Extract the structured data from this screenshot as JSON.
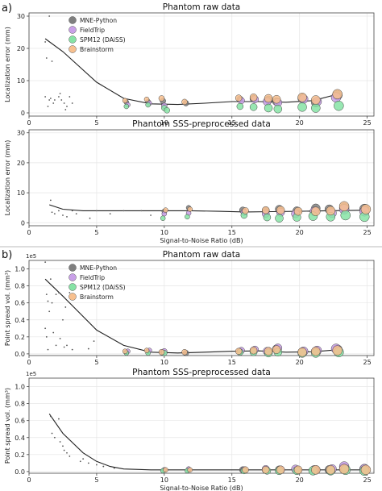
{
  "panel_labels": [
    "a)",
    "b)"
  ],
  "legend_entries": [
    {
      "name": "MNE-Python",
      "color": "#7f7f7f"
    },
    {
      "name": "FieldTrip",
      "color": "#c9a0e8"
    },
    {
      "name": "SPM12 (DAiSS)",
      "color": "#86e3a5"
    },
    {
      "name": "Brainstorm",
      "color": "#f7c08f"
    }
  ],
  "chart_data": [
    {
      "type": "scatter",
      "panel": "a",
      "title": "Phantom raw data",
      "xlabel": "",
      "ylabel": "Localization error (mm)",
      "xlim": [
        0,
        25.5
      ],
      "ylim": [
        -1,
        31
      ],
      "xticks": [
        0,
        5,
        10,
        15,
        20,
        25
      ],
      "yticks": [
        0,
        10,
        20,
        30
      ],
      "sci_label": "",
      "legend": "top-left",
      "grid": true,
      "fit": {
        "x": [
          1.2,
          2.5,
          5,
          7,
          9,
          11,
          13,
          15,
          17,
          19,
          21,
          23
        ],
        "y": [
          23,
          19,
          9.5,
          4.5,
          2.8,
          2.6,
          3,
          3.5,
          3.5,
          3.3,
          3.8,
          6
        ]
      },
      "series": [
        {
          "name": "MNE-Python",
          "x": [
            7.2,
            8.8,
            9.9,
            11.6,
            15.6,
            16.6,
            17.7,
            18.3,
            20.2,
            21.2,
            22.8
          ],
          "y": [
            3.3,
            3.5,
            3.7,
            3.0,
            4.2,
            4.4,
            4.0,
            3.5,
            4.5,
            3.2,
            5.5
          ],
          "size": [
            3,
            3,
            3.5,
            3.5,
            4,
            4.5,
            5,
            5,
            5.5,
            5.5,
            6
          ]
        },
        {
          "name": "FieldTrip",
          "x": [
            7.3,
            8.9,
            10.0,
            15.7,
            16.7,
            17.6,
            18.4,
            20.3,
            21.3,
            22.7
          ],
          "y": [
            2.5,
            3.0,
            2.2,
            3.8,
            4.2,
            3.5,
            3.2,
            4.3,
            3.5,
            4.8
          ],
          "size": [
            3,
            3,
            3.5,
            4,
            4.5,
            5,
            5,
            5.5,
            5.5,
            6
          ]
        },
        {
          "name": "SPM12 (DAiSS)",
          "x": [
            7.2,
            8.8,
            10.0,
            10.2,
            15.6,
            16.6,
            17.7,
            18.4,
            20.2,
            21.2,
            22.9
          ],
          "y": [
            2.0,
            2.5,
            1.5,
            0.8,
            2.0,
            1.8,
            1.5,
            1.2,
            1.8,
            1.5,
            2.2
          ],
          "size": [
            3,
            3,
            3.5,
            3.5,
            4,
            4.5,
            5,
            5,
            5.5,
            5.5,
            6
          ]
        },
        {
          "name": "Brainstorm",
          "x": [
            7.1,
            8.7,
            9.8,
            11.5,
            15.5,
            16.6,
            17.7,
            18.3,
            20.2,
            21.2,
            22.8
          ],
          "y": [
            3.8,
            4.2,
            4.5,
            3.4,
            4.6,
            4.8,
            4.5,
            4.2,
            4.8,
            4.0,
            5.8
          ],
          "size": [
            3,
            3,
            3.5,
            3.5,
            4,
            4.5,
            5,
            5,
            5.5,
            5.5,
            6
          ]
        },
        {
          "name": "",
          "x": [
            1.2,
            1.3,
            1.5,
            1.7,
            1.2,
            1.5,
            1.6,
            1.8,
            2.2,
            2.4,
            2.6,
            3.0,
            2.3,
            2.8,
            3.2,
            1.9,
            2.7,
            1.4
          ],
          "y": [
            22,
            17,
            30,
            16,
            5,
            4,
            4.5,
            3,
            5,
            4,
            3,
            5,
            6,
            2,
            3,
            4,
            1,
            2
          ],
          "size": [
            1,
            1,
            1,
            1,
            1,
            1,
            1,
            1,
            1,
            1,
            1,
            1,
            1,
            1,
            1,
            1,
            1,
            1
          ]
        }
      ]
    },
    {
      "type": "scatter",
      "panel": "a",
      "title": "Phantom SSS-preprocessed data",
      "xlabel": "Signal-to-Noise Ratio (dB)",
      "ylabel": "Localization error (mm)",
      "xlim": [
        0,
        25.5
      ],
      "ylim": [
        -1,
        31
      ],
      "xticks": [
        0,
        5,
        10,
        15,
        20,
        25
      ],
      "yticks": [
        0,
        10,
        20,
        30
      ],
      "sci_label": "",
      "legend": "none",
      "grid": true,
      "fit": {
        "x": [
          1.5,
          2.5,
          4,
          6,
          8,
          10,
          12,
          14,
          16,
          18,
          20,
          22,
          25
        ],
        "y": [
          6,
          4.5,
          4,
          4,
          4,
          4,
          4,
          3.8,
          3.6,
          3.7,
          3.8,
          4,
          4.2
        ]
      },
      "series": [
        {
          "name": "MNE-Python",
          "x": [
            10.0,
            11.8,
            15.8,
            17.5,
            18.5,
            19.8,
            21.2,
            22.2,
            23.3,
            24.8
          ],
          "y": [
            3.8,
            5.0,
            4.2,
            4.0,
            4.5,
            4.0,
            4.8,
            4.5,
            5.0,
            4.6
          ],
          "size": [
            3,
            3,
            4,
            4.5,
            5,
            5,
            5.5,
            5.5,
            6,
            6
          ]
        },
        {
          "name": "FieldTrip",
          "x": [
            10.0,
            11.8,
            15.9,
            17.5,
            18.6,
            19.7,
            21.1,
            22.4,
            23.3,
            24.8
          ],
          "y": [
            3.0,
            3.2,
            3.5,
            3.0,
            3.5,
            3.0,
            3.8,
            3.2,
            4.5,
            3.8
          ],
          "size": [
            3,
            3,
            4,
            4.5,
            5,
            5,
            5.5,
            5.5,
            6,
            6
          ]
        },
        {
          "name": "SPM12 (DAiSS)",
          "x": [
            9.9,
            11.7,
            15.9,
            17.6,
            18.5,
            19.8,
            21.0,
            22.3,
            23.4,
            24.8
          ],
          "y": [
            1.5,
            2.0,
            2.5,
            1.8,
            1.5,
            1.8,
            2.2,
            2.0,
            2.5,
            2.0
          ],
          "size": [
            3,
            3,
            4,
            4.5,
            5,
            5,
            5.5,
            5.5,
            6,
            6
          ]
        },
        {
          "name": "Brainstorm",
          "x": [
            10.1,
            11.9,
            16.0,
            17.5,
            18.6,
            19.9,
            21.2,
            22.3,
            23.3,
            24.9
          ],
          "y": [
            4.2,
            4.5,
            4.0,
            4.2,
            4.2,
            3.8,
            3.8,
            4.0,
            5.5,
            4.5
          ],
          "size": [
            3,
            3,
            4,
            4.5,
            5,
            5,
            5.5,
            5.5,
            6,
            6
          ]
        },
        {
          "name": "",
          "x": [
            1.6,
            1.7,
            1.9,
            2.2,
            2.5,
            2.8,
            3.2,
            3.5,
            4.5,
            5.0,
            6.0,
            7.0,
            8.3,
            9.0
          ],
          "y": [
            7.5,
            3.5,
            3,
            4,
            2.5,
            2,
            4,
            3,
            1.5,
            4,
            3,
            4,
            4,
            2.5
          ],
          "size": [
            1,
            1,
            1,
            1,
            1,
            1,
            1,
            1,
            1,
            1,
            1,
            1,
            1,
            1
          ]
        }
      ]
    },
    {
      "type": "scatter",
      "panel": "b",
      "title": "Phantom raw data",
      "xlabel": "",
      "ylabel": "Point spread vol. (mm³)",
      "xlim": [
        0,
        25.5
      ],
      "ylim": [
        -0.02,
        1.1
      ],
      "xticks": [
        0,
        5,
        10,
        15,
        20,
        25
      ],
      "yticks": [
        0.0,
        0.2,
        0.4,
        0.6,
        0.8,
        1.0
      ],
      "sci_label": "1e5",
      "legend": "top-left",
      "grid": true,
      "fit": {
        "x": [
          1.2,
          2.5,
          5,
          7,
          9,
          11,
          13,
          15,
          17,
          19,
          21,
          23
        ],
        "y": [
          0.88,
          0.68,
          0.28,
          0.1,
          0.02,
          0.01,
          0.02,
          0.03,
          0.035,
          0.02,
          0.025,
          0.05
        ]
      },
      "series": [
        {
          "name": "MNE-Python",
          "x": [
            7.2,
            8.8,
            9.9,
            11.6,
            15.6,
            16.6,
            17.7,
            18.3,
            20.2,
            21.2,
            22.8
          ],
          "y": [
            0.02,
            0.03,
            0.02,
            0.01,
            0.03,
            0.04,
            0.03,
            0.06,
            0.02,
            0.03,
            0.05
          ],
          "size": [
            3,
            3,
            3.5,
            3.5,
            4,
            4.5,
            5,
            5,
            5.5,
            5.5,
            6
          ]
        },
        {
          "name": "FieldTrip",
          "x": [
            7.3,
            8.9,
            10.0,
            15.7,
            16.7,
            17.6,
            18.4,
            20.3,
            21.3,
            22.7
          ],
          "y": [
            0.03,
            0.04,
            0.03,
            0.04,
            0.05,
            0.03,
            0.07,
            0.03,
            0.04,
            0.06
          ],
          "size": [
            3,
            3,
            3.5,
            4,
            4.5,
            5,
            5,
            5.5,
            5.5,
            6
          ]
        },
        {
          "name": "SPM12 (DAiSS)",
          "x": [
            7.2,
            8.8,
            10.0,
            15.6,
            16.6,
            17.7,
            18.4,
            20.2,
            21.2,
            22.9
          ],
          "y": [
            0.01,
            0.01,
            0.01,
            0.02,
            0.02,
            0.01,
            0.02,
            0.01,
            0.01,
            0.02
          ],
          "size": [
            3,
            3,
            3.5,
            4,
            4.5,
            5,
            5,
            5.5,
            5.5,
            6
          ]
        },
        {
          "name": "Brainstorm",
          "x": [
            7.1,
            8.7,
            9.8,
            11.5,
            15.5,
            16.6,
            17.7,
            18.3,
            20.2,
            21.2,
            22.8
          ],
          "y": [
            0.03,
            0.04,
            0.02,
            0.02,
            0.03,
            0.04,
            0.03,
            0.05,
            0.02,
            0.03,
            0.04
          ],
          "size": [
            3,
            3,
            3.5,
            3.5,
            4,
            4.5,
            5,
            5,
            5.5,
            5.5,
            6
          ]
        },
        {
          "name": "",
          "x": [
            1.2,
            1.3,
            1.4,
            1.5,
            1.6,
            1.2,
            1.3,
            1.7,
            2.0,
            2.2,
            2.5,
            2.7,
            3.0,
            1.8,
            2.3,
            2.8,
            3.2,
            1.4,
            2.0,
            2.6,
            4.4,
            4.8
          ],
          "y": [
            1.08,
            0.7,
            0.62,
            0.5,
            0.88,
            0.3,
            0.2,
            0.6,
            0.7,
            0.72,
            0.4,
            0.55,
            0.72,
            0.25,
            0.18,
            0.1,
            0.05,
            0.05,
            0.1,
            0.08,
            0.06,
            0.15
          ],
          "size": [
            1,
            1,
            1,
            1,
            1,
            1,
            1,
            1,
            1,
            1,
            1,
            1,
            1,
            1,
            1,
            1,
            1,
            1,
            1,
            1,
            1,
            1
          ]
        }
      ]
    },
    {
      "type": "scatter",
      "panel": "b",
      "title": "Phantom SSS-preprocessed data",
      "xlabel": "Signal-to-Noise Ratio (dB)",
      "ylabel": "Point spread vol. (mm³)",
      "xlim": [
        0,
        25.5
      ],
      "ylim": [
        -0.02,
        1.1
      ],
      "xticks": [
        0,
        5,
        10,
        15,
        20,
        25
      ],
      "yticks": [
        0.0,
        0.2,
        0.4,
        0.6,
        0.8,
        1.0
      ],
      "sci_label": "1e5",
      "legend": "none",
      "grid": true,
      "fit": {
        "x": [
          1.5,
          2.5,
          4,
          5,
          6,
          7,
          9,
          11,
          13,
          15,
          17,
          19,
          21,
          23,
          25
        ],
        "y": [
          0.68,
          0.45,
          0.22,
          0.12,
          0.06,
          0.03,
          0.02,
          0.02,
          0.02,
          0.02,
          0.02,
          0.02,
          0.02,
          0.02,
          0.02
        ]
      },
      "series": [
        {
          "name": "MNE-Python",
          "x": [
            10.0,
            11.8,
            15.8,
            17.5,
            18.5,
            19.8,
            21.2,
            22.2,
            23.3,
            24.8
          ],
          "y": [
            0.02,
            0.02,
            0.02,
            0.02,
            0.02,
            0.02,
            0.02,
            0.02,
            0.04,
            0.03
          ],
          "size": [
            3,
            3,
            4,
            4.5,
            5,
            5,
            5.5,
            5.5,
            6,
            6
          ]
        },
        {
          "name": "FieldTrip",
          "x": [
            10.0,
            11.8,
            15.9,
            17.5,
            18.6,
            19.7,
            21.1,
            22.4,
            23.3,
            24.8
          ],
          "y": [
            0.02,
            0.03,
            0.02,
            0.03,
            0.02,
            0.03,
            0.02,
            0.03,
            0.06,
            0.03
          ],
          "size": [
            3,
            3,
            4,
            4.5,
            5,
            5,
            5.5,
            5.5,
            6,
            6
          ]
        },
        {
          "name": "SPM12 (DAiSS)",
          "x": [
            9.9,
            11.7,
            15.9,
            17.6,
            18.5,
            19.8,
            21.0,
            22.3,
            23.4,
            24.8
          ],
          "y": [
            0.01,
            0.01,
            0.01,
            0.01,
            0.01,
            0.01,
            0.01,
            0.01,
            0.02,
            0.01
          ],
          "size": [
            3,
            3,
            4,
            4.5,
            5,
            5,
            5.5,
            5.5,
            6,
            6
          ]
        },
        {
          "name": "Brainstorm",
          "x": [
            10.1,
            11.9,
            16.0,
            17.5,
            18.6,
            19.9,
            21.2,
            22.3,
            23.3,
            24.9
          ],
          "y": [
            0.02,
            0.02,
            0.02,
            0.02,
            0.02,
            0.02,
            0.02,
            0.02,
            0.03,
            0.02
          ],
          "size": [
            3,
            3,
            4,
            4.5,
            5,
            5,
            5.5,
            5.5,
            6,
            6
          ]
        },
        {
          "name": "",
          "x": [
            1.6,
            1.7,
            1.9,
            2.2,
            2.3,
            2.5,
            2.6,
            2.8,
            3.0,
            3.8,
            4.0,
            4.4,
            5.0,
            5.5,
            6.3
          ],
          "y": [
            0.65,
            0.45,
            0.4,
            0.62,
            0.35,
            0.3,
            0.25,
            0.22,
            0.18,
            0.12,
            0.15,
            0.1,
            0.08,
            0.06,
            0.04
          ],
          "size": [
            1,
            1,
            1,
            1,
            1,
            1,
            1,
            1,
            1,
            1,
            1,
            1,
            1,
            1,
            1
          ]
        }
      ]
    }
  ]
}
